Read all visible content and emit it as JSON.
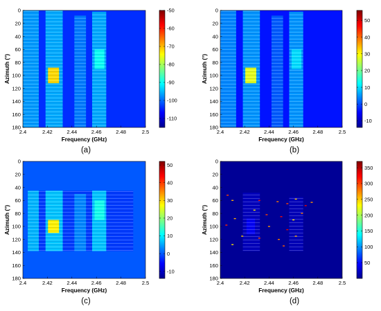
{
  "chart_data": [
    {
      "type": "heatmap",
      "panel_label": "(a)",
      "xlabel": "Frequency (GHz)",
      "ylabel": "Azimuth (°)",
      "xlim": [
        2.4,
        2.5
      ],
      "ylim": [
        0,
        180
      ],
      "y_reversed": true,
      "x_ticks": [
        "2.4",
        "2.42",
        "2.44",
        "2.46",
        "2.48",
        "2.5"
      ],
      "y_ticks": [
        "0",
        "20",
        "40",
        "60",
        "80",
        "100",
        "120",
        "140",
        "160",
        "180"
      ],
      "colorbar": {
        "min": -115,
        "max": -50,
        "ticks": [
          -50,
          -60,
          -70,
          -80,
          -90,
          -100,
          -110
        ]
      },
      "regions": [
        {
          "x": [
            2.4,
            2.5
          ],
          "y": [
            0,
            180
          ],
          "value": -104
        },
        {
          "x": [
            2.4,
            2.413
          ],
          "y": [
            0,
            180
          ],
          "value": -97
        },
        {
          "x": [
            2.4185,
            2.4325
          ],
          "y": [
            0,
            180
          ],
          "value": -96
        },
        {
          "x": [
            2.4205,
            2.4295
          ],
          "y": [
            88,
            112
          ],
          "value": -72
        },
        {
          "x": [
            2.442,
            2.4515
          ],
          "y": [
            8,
            180
          ],
          "value": -99
        },
        {
          "x": [
            2.4565,
            2.468
          ],
          "y": [
            2,
            180
          ],
          "value": -96
        },
        {
          "x": [
            2.4585,
            2.4665
          ],
          "y": [
            60,
            90
          ],
          "value": -90
        }
      ]
    },
    {
      "type": "heatmap",
      "panel_label": "(b)",
      "xlabel": "Frequency (GHz)",
      "ylabel": "Azimuth (°)",
      "xlim": [
        2.4,
        2.5
      ],
      "ylim": [
        0,
        180
      ],
      "y_reversed": true,
      "x_ticks": [
        "2.4",
        "2.42",
        "2.44",
        "2.46",
        "2.48",
        "2.5"
      ],
      "y_ticks": [
        "0",
        "20",
        "40",
        "60",
        "80",
        "100",
        "120",
        "140",
        "160",
        "180"
      ],
      "colorbar": {
        "min": -14,
        "max": 56,
        "ticks": [
          50,
          40,
          30,
          20,
          10,
          0,
          -10
        ]
      },
      "regions": [
        {
          "x": [
            2.4,
            2.5
          ],
          "y": [
            0,
            180
          ],
          "value": -4
        },
        {
          "x": [
            2.4,
            2.413
          ],
          "y": [
            0,
            180
          ],
          "value": 4
        },
        {
          "x": [
            2.4185,
            2.4325
          ],
          "y": [
            0,
            180
          ],
          "value": 5
        },
        {
          "x": [
            2.4205,
            2.4295
          ],
          "y": [
            88,
            112
          ],
          "value": 28
        },
        {
          "x": [
            2.442,
            2.4515
          ],
          "y": [
            8,
            180
          ],
          "value": 1
        },
        {
          "x": [
            2.4565,
            2.468
          ],
          "y": [
            2,
            180
          ],
          "value": 5
        },
        {
          "x": [
            2.4585,
            2.4665
          ],
          "y": [
            60,
            90
          ],
          "value": 10
        }
      ]
    },
    {
      "type": "heatmap",
      "panel_label": "(c)",
      "xlabel": "Frequency (GHz)",
      "ylabel": "Azimuth (°)",
      "xlim": [
        2.4,
        2.5
      ],
      "ylim": [
        0,
        180
      ],
      "y_reversed": true,
      "x_ticks": [
        "2.4",
        "2.42",
        "2.44",
        "2.46",
        "2.48",
        "2.5"
      ],
      "y_ticks": [
        "0",
        "20",
        "40",
        "60",
        "80",
        "100",
        "120",
        "140",
        "160",
        "180"
      ],
      "colorbar": {
        "min": -14,
        "max": 52,
        "ticks": [
          50,
          40,
          30,
          20,
          10,
          0,
          -10
        ]
      },
      "regions": [
        {
          "x": [
            2.4,
            2.5
          ],
          "y": [
            0,
            180
          ],
          "value": 0
        },
        {
          "x": [
            2.404,
            2.49
          ],
          "y": [
            45,
            138
          ],
          "value": -2
        },
        {
          "x": [
            2.404,
            2.413
          ],
          "y": [
            45,
            138
          ],
          "value": 6
        },
        {
          "x": [
            2.4185,
            2.4325
          ],
          "y": [
            45,
            138
          ],
          "value": 7
        },
        {
          "x": [
            2.4205,
            2.4295
          ],
          "y": [
            90,
            110
          ],
          "value": 28
        },
        {
          "x": [
            2.442,
            2.4515
          ],
          "y": [
            50,
            138
          ],
          "value": 3
        },
        {
          "x": [
            2.4565,
            2.468
          ],
          "y": [
            45,
            138
          ],
          "value": 7
        },
        {
          "x": [
            2.4585,
            2.4665
          ],
          "y": [
            60,
            90
          ],
          "value": 12
        }
      ]
    },
    {
      "type": "heatmap",
      "panel_label": "(d)",
      "xlabel": "Frequency (GHz)",
      "ylabel": "Azimuth (°)",
      "xlim": [
        2.4,
        2.5
      ],
      "ylim": [
        0,
        180
      ],
      "y_reversed": true,
      "x_ticks": [
        "2.4",
        "2.42",
        "2.44",
        "2.46",
        "2.48",
        "2.5"
      ],
      "y_ticks": [
        "0",
        "20",
        "40",
        "60",
        "80",
        "100",
        "120",
        "140",
        "160",
        "180"
      ],
      "colorbar": {
        "min": 0,
        "max": 370,
        "ticks": [
          350,
          300,
          250,
          200,
          150,
          100,
          50
        ]
      },
      "regions": [
        {
          "x": [
            2.4,
            2.5
          ],
          "y": [
            0,
            180
          ],
          "value": 8
        },
        {
          "x": [
            2.4185,
            2.4325
          ],
          "y": [
            48,
            138
          ],
          "value": 22
        },
        {
          "x": [
            2.4215,
            2.4285
          ],
          "y": [
            88,
            112
          ],
          "value": 42
        },
        {
          "x": [
            2.4565,
            2.468
          ],
          "y": [
            55,
            138
          ],
          "value": 20
        }
      ],
      "points": [
        {
          "x": 2.406,
          "y": 52,
          "value": 300
        },
        {
          "x": 2.41,
          "y": 60,
          "value": 260
        },
        {
          "x": 2.432,
          "y": 60,
          "value": 320
        },
        {
          "x": 2.447,
          "y": 62,
          "value": 280
        },
        {
          "x": 2.455,
          "y": 65,
          "value": 300
        },
        {
          "x": 2.462,
          "y": 58,
          "value": 250
        },
        {
          "x": 2.47,
          "y": 68,
          "value": 330
        },
        {
          "x": 2.475,
          "y": 63,
          "value": 270
        },
        {
          "x": 2.428,
          "y": 75,
          "value": 240
        },
        {
          "x": 2.438,
          "y": 82,
          "value": 300
        },
        {
          "x": 2.412,
          "y": 88,
          "value": 260
        },
        {
          "x": 2.45,
          "y": 85,
          "value": 320
        },
        {
          "x": 2.467,
          "y": 80,
          "value": 280
        },
        {
          "x": 2.46,
          "y": 90,
          "value": 240
        },
        {
          "x": 2.405,
          "y": 98,
          "value": 310
        },
        {
          "x": 2.44,
          "y": 100,
          "value": 270
        },
        {
          "x": 2.455,
          "y": 105,
          "value": 330
        },
        {
          "x": 2.418,
          "y": 115,
          "value": 250
        },
        {
          "x": 2.432,
          "y": 118,
          "value": 300
        },
        {
          "x": 2.448,
          "y": 120,
          "value": 280
        },
        {
          "x": 2.462,
          "y": 115,
          "value": 260
        },
        {
          "x": 2.41,
          "y": 128,
          "value": 240
        },
        {
          "x": 2.452,
          "y": 130,
          "value": 290
        }
      ]
    }
  ]
}
